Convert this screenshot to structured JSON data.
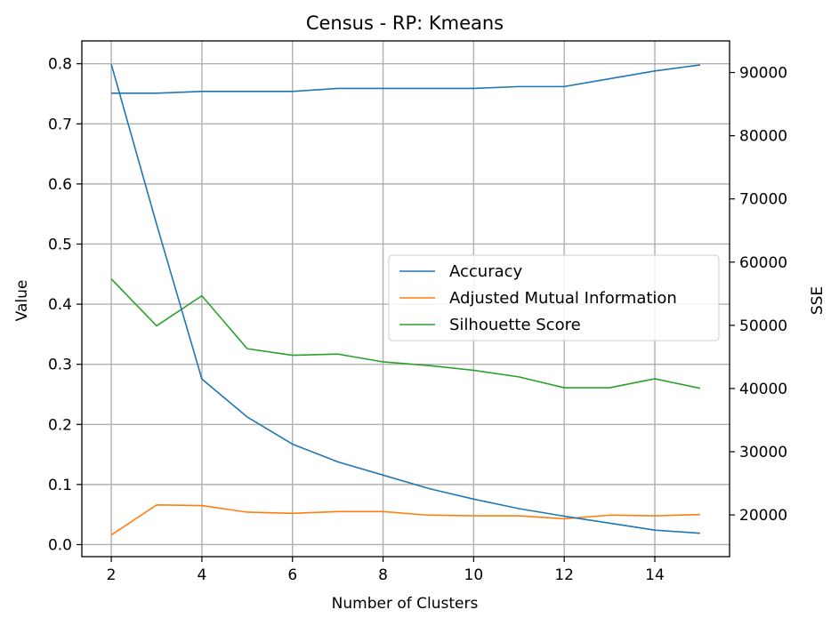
{
  "chart_data": {
    "type": "line",
    "title": "Census - RP: Kmeans",
    "xlabel": "Number of Clusters",
    "ylabel": "Value",
    "y2label": "SSE",
    "xlim": [
      1.35,
      15.65
    ],
    "ylim": [
      -0.02,
      0.838
    ],
    "y2lim": [
      13400,
      95000
    ],
    "x_ticks": [
      2,
      4,
      6,
      8,
      10,
      12,
      14
    ],
    "y_ticks": [
      0.0,
      0.1,
      0.2,
      0.3,
      0.4,
      0.5,
      0.6,
      0.7,
      0.8
    ],
    "y2_ticks": [
      20000,
      30000,
      40000,
      50000,
      60000,
      70000,
      80000,
      90000
    ],
    "grid": true,
    "legend_position": "center-right",
    "x": [
      2,
      3,
      4,
      5,
      6,
      7,
      8,
      9,
      10,
      11,
      12,
      13,
      14,
      15
    ],
    "series": [
      {
        "name": "Accuracy",
        "axis": "left",
        "color": "#1f77b4",
        "values": [
          0.751,
          0.751,
          0.754,
          0.754,
          0.754,
          0.759,
          0.759,
          0.759,
          0.759,
          0.762,
          0.762,
          0.775,
          0.788,
          0.798
        ]
      },
      {
        "name": "Adjusted Mutual Information",
        "axis": "left",
        "color": "#ff7f0e",
        "values": [
          0.016,
          0.066,
          0.065,
          0.054,
          0.052,
          0.055,
          0.055,
          0.049,
          0.048,
          0.048,
          0.043,
          0.049,
          0.048,
          0.05
        ]
      },
      {
        "name": "Silhouette Score",
        "axis": "left",
        "color": "#2ca02c",
        "values": [
          0.442,
          0.364,
          0.414,
          0.326,
          0.315,
          0.317,
          0.304,
          0.298,
          0.29,
          0.279,
          0.261,
          0.261,
          0.276,
          0.26
        ]
      },
      {
        "axis": "right",
        "color": "#1f77b4",
        "values": [
          91300,
          66000,
          41500,
          35500,
          31200,
          28400,
          26300,
          24200,
          22500,
          21000,
          19800,
          18700,
          17600,
          17100
        ]
      }
    ]
  }
}
